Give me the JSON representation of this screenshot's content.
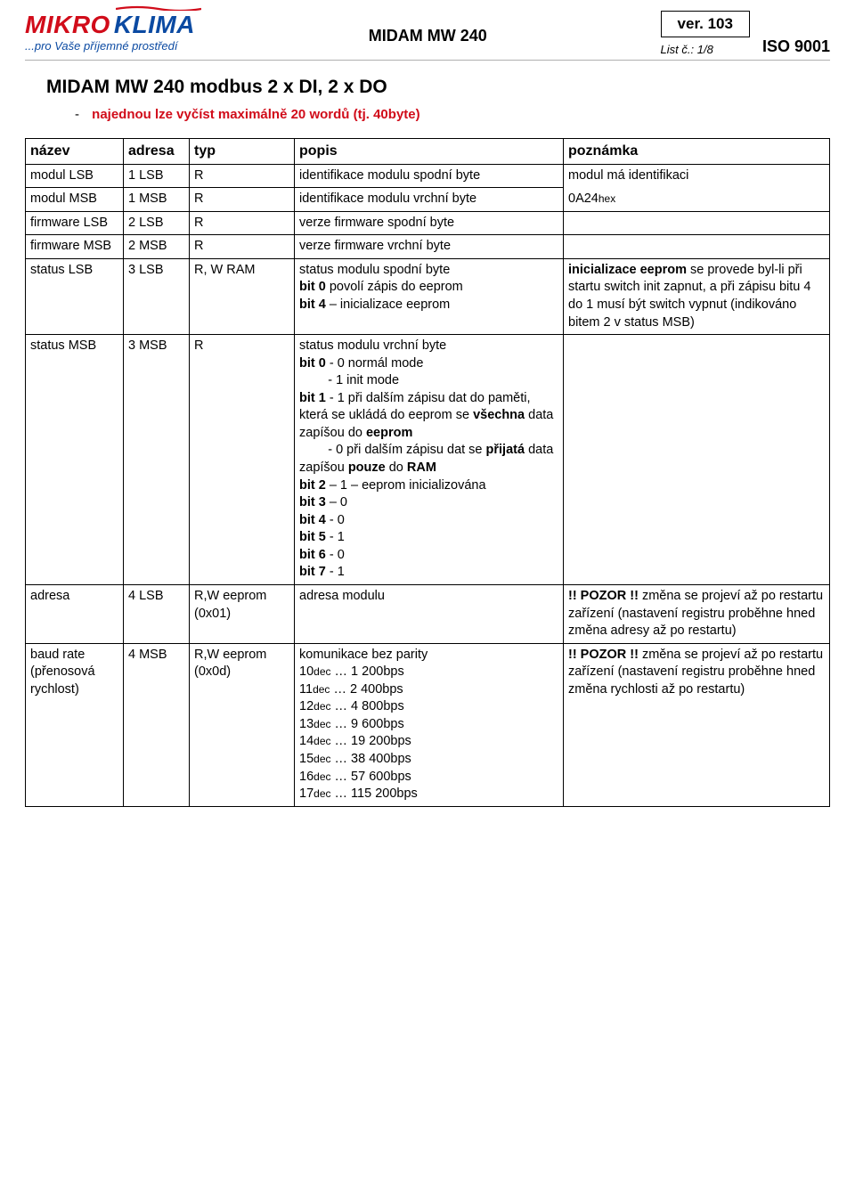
{
  "header": {
    "logo_red": "MIKRO",
    "logo_blue": "KLIMA",
    "tagline": "...pro Vaše příjemné prostředí",
    "center_title": "MIDAM MW 240",
    "ver": "ver. 103",
    "iso": "ISO 9001",
    "list_label": "List č.:",
    "list_value": "1/8"
  },
  "title": "MIDAM MW 240 modbus 2 x DI, 2 x DO",
  "bullet": "najednou lze vyčíst maximálně 20 wordů (tj. 40byte)",
  "table": {
    "headers": {
      "nazev": "název",
      "adresa": "adresa",
      "typ": "typ",
      "popis": "popis",
      "poznamka": "poznámka"
    },
    "rows": [
      {
        "nazev": "modul LSB",
        "adresa": "1 LSB",
        "typ": "R",
        "popis_plain": "identifikace modulu spodní byte",
        "pozn_plain": "modul má identifikaci",
        "merge_pozn_down": true
      },
      {
        "nazev": "modul MSB",
        "adresa": "1 MSB",
        "typ": "R",
        "popis_plain": "identifikace modulu vrchní byte",
        "pozn_html": "0A24<span class=\"small\">hex</span>",
        "continues_pozn": true
      },
      {
        "nazev": "firmware LSB",
        "adresa": "2 LSB",
        "typ": "R",
        "popis_plain": "verze firmware spodní byte",
        "pozn_plain": ""
      },
      {
        "nazev": "firmware MSB",
        "adresa": "2 MSB",
        "typ": "R",
        "popis_plain": "verze firmware vrchní byte",
        "pozn_plain": ""
      },
      {
        "nazev": "status LSB",
        "adresa": "3 LSB",
        "typ": "R, W RAM",
        "popis_html": "status modulu spodní byte<br><span class=\"b\">bit 0</span> povolí zápis do eeprom<br><span class=\"b\">bit 4</span> – inicializace eeprom",
        "pozn_html": "<span class=\"b\">inicializace eeprom</span> se provede byl-li při startu switch init zapnut, a při zápisu bitu 4 do 1 musí být switch vypnut (indikováno bitem 2 v status MSB)"
      },
      {
        "nazev": "status MSB",
        "adresa": "3 MSB",
        "typ": "R",
        "popis_html": "status modulu vrchní byte<br><span class=\"b\">bit 0</span> - 0 normál mode<br>&nbsp;&nbsp;&nbsp;&nbsp;&nbsp;&nbsp;&nbsp;&nbsp;- 1 init mode<br><span class=\"b\">bit 1</span> - 1 při dalším zápisu dat do paměti, která se ukládá do eeprom se <span class=\"b\">všechna</span> data zapíšou do <span class=\"b\">eeprom</span><br>&nbsp;&nbsp;&nbsp;&nbsp;&nbsp;&nbsp;&nbsp;&nbsp;- 0 při dalším zápisu dat se <span class=\"b\">přijatá</span> data zapíšou <span class=\"b\">pouze</span> do <span class=\"b\">RAM</span><br><span class=\"b\">bit 2</span> – 1 – eeprom inicializována<br><span class=\"b\">bit 3</span> – 0<br><span class=\"b\">bit 4</span> - 0<br><span class=\"b\">bit 5</span> - 1<br><span class=\"b\">bit 6</span> - 0<br><span class=\"b\">bit 7</span> - 1",
        "pozn_plain": ""
      },
      {
        "nazev": "adresa",
        "adresa": "4 LSB",
        "typ": "R,W eeprom (0x01)",
        "popis_plain": "adresa modulu",
        "pozn_html": "<span class=\"b\">!! POZOR !!</span> změna se projeví až po restartu zařízení (nastavení registru proběhne hned změna adresy až po restartu)"
      },
      {
        "nazev": "baud rate (přenosová rychlost)",
        "adresa": "4 MSB",
        "typ": "R,W eeprom (0x0d)",
        "popis_html": "komunikace bez parity<br>10<span class=\"small\">dec</span> … 1 200bps<br>11<span class=\"small\">dec</span> … 2 400bps<br>12<span class=\"small\">dec</span> … 4 800bps<br>13<span class=\"small\">dec</span> … 9 600bps<br>14<span class=\"small\">dec</span> … 19 200bps<br>15<span class=\"small\">dec</span> … 38 400bps<br>16<span class=\"small\">dec</span> … 57 600bps<br>17<span class=\"small\">dec</span> … 115 200bps",
        "pozn_html": "<span class=\"b\">!! POZOR !!</span> změna se projeví až po restartu zařízení (nastavení registru proběhne hned změna rychlosti až po restartu)"
      }
    ]
  }
}
